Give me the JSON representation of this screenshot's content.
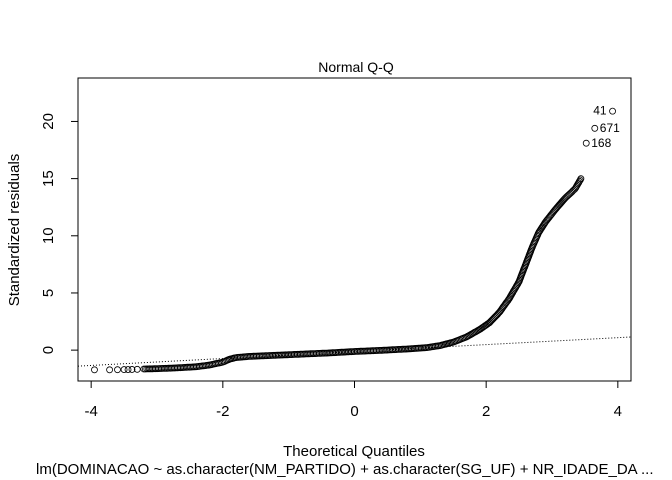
{
  "chart_data": {
    "type": "scatter",
    "title": "Normal Q-Q",
    "xlabel": "Theoretical Quantiles",
    "ylabel": "Standardized residuals",
    "subtitle": "lm(DOMINACAO ~ as.character(NM_PARTIDO) + as.character(SG_UF) + NR_IDADE_DA ...",
    "xlim": [
      -4.2,
      4.2
    ],
    "ylim": [
      -2.7,
      23.8
    ],
    "x_ticks": [
      -4,
      -2,
      0,
      2,
      4
    ],
    "x_tick_labels": [
      "-4",
      "-2",
      "0",
      "2",
      "4"
    ],
    "y_ticks": [
      0,
      5,
      10,
      15,
      20
    ],
    "y_tick_labels": [
      "0",
      "5",
      "10",
      "15",
      "20"
    ],
    "grid": false,
    "reference_line": {
      "style": "dotted",
      "points": [
        [
          -4.2,
          -1.4
        ],
        [
          4.2,
          1.15
        ]
      ]
    },
    "curve_points": [
      [
        -3.2,
        -1.65
      ],
      [
        -3.0,
        -1.62
      ],
      [
        -2.8,
        -1.58
      ],
      [
        -2.6,
        -1.52
      ],
      [
        -2.4,
        -1.45
      ],
      [
        -2.2,
        -1.3
      ],
      [
        -2.0,
        -1.05
      ],
      [
        -1.9,
        -0.8
      ],
      [
        -1.8,
        -0.65
      ],
      [
        -1.6,
        -0.55
      ],
      [
        -1.2,
        -0.45
      ],
      [
        -0.8,
        -0.35
      ],
      [
        -0.4,
        -0.25
      ],
      [
        0.0,
        -0.12
      ],
      [
        0.4,
        -0.02
      ],
      [
        0.8,
        0.1
      ],
      [
        1.1,
        0.22
      ],
      [
        1.3,
        0.4
      ],
      [
        1.5,
        0.7
      ],
      [
        1.7,
        1.15
      ],
      [
        1.9,
        1.8
      ],
      [
        2.05,
        2.4
      ],
      [
        2.2,
        3.3
      ],
      [
        2.35,
        4.5
      ],
      [
        2.5,
        6.0
      ],
      [
        2.6,
        7.5
      ],
      [
        2.7,
        9.0
      ],
      [
        2.8,
        10.3
      ],
      [
        2.9,
        11.2
      ],
      [
        3.05,
        12.3
      ],
      [
        3.2,
        13.3
      ],
      [
        3.35,
        14.1
      ],
      [
        3.45,
        15.1
      ]
    ],
    "points": [
      {
        "x": -3.95,
        "y": -1.72
      },
      {
        "x": -3.72,
        "y": -1.72
      },
      {
        "x": -3.6,
        "y": -1.71
      },
      {
        "x": -3.5,
        "y": -1.7
      },
      {
        "x": -3.44,
        "y": -1.7
      },
      {
        "x": -3.38,
        "y": -1.69
      },
      {
        "x": -3.3,
        "y": -1.68
      },
      {
        "x": 3.52,
        "y": 18.1
      },
      {
        "x": 3.65,
        "y": 19.4
      },
      {
        "x": 3.92,
        "y": 20.9
      }
    ],
    "point_labels": [
      {
        "x": 3.52,
        "y": 18.1,
        "label": "168"
      },
      {
        "x": 3.65,
        "y": 19.4,
        "label": "671"
      },
      {
        "x": 3.92,
        "y": 20.9,
        "label": "41"
      }
    ]
  }
}
